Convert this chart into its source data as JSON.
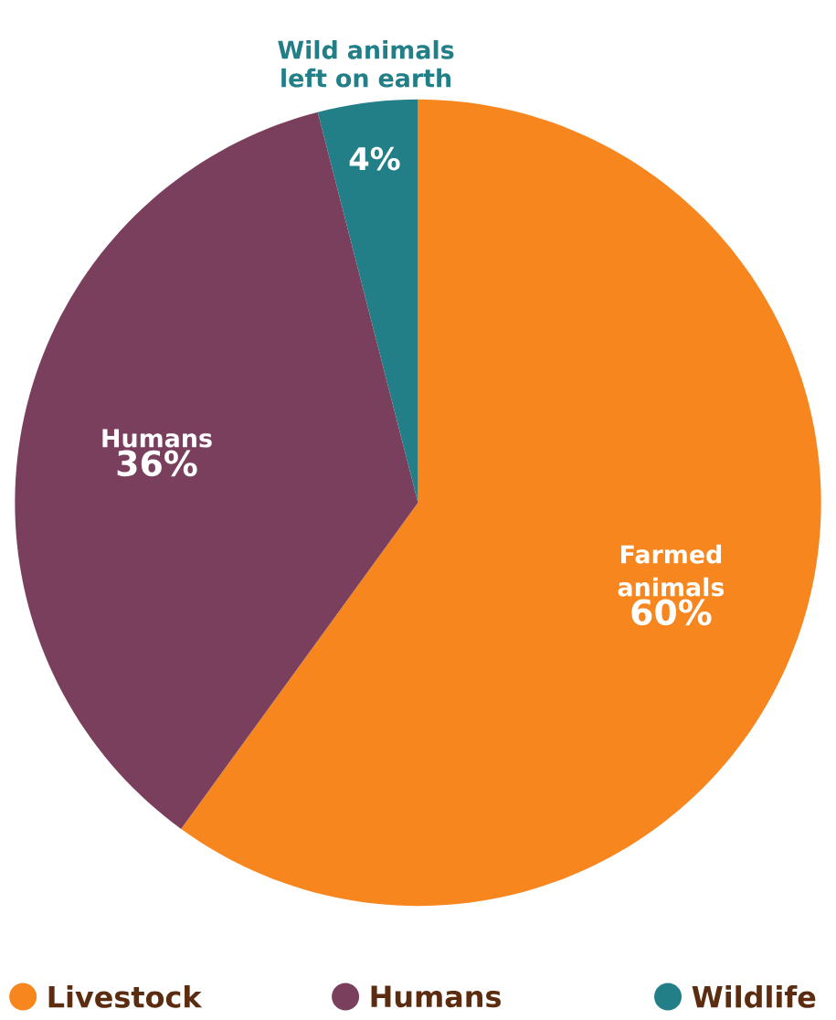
{
  "chart_data": {
    "type": "pie",
    "categories": [
      "Livestock",
      "Humans",
      "Wildlife"
    ],
    "values": [
      60,
      36,
      4
    ],
    "colors": [
      "#f7861f",
      "#7b3f5e",
      "#237f87"
    ],
    "value_labels": [
      "60%",
      "36%",
      "4%"
    ],
    "annotations": [
      "Farmed animals",
      "Humans",
      "Wild animals left on earth"
    ],
    "legend": "bottom"
  }
}
